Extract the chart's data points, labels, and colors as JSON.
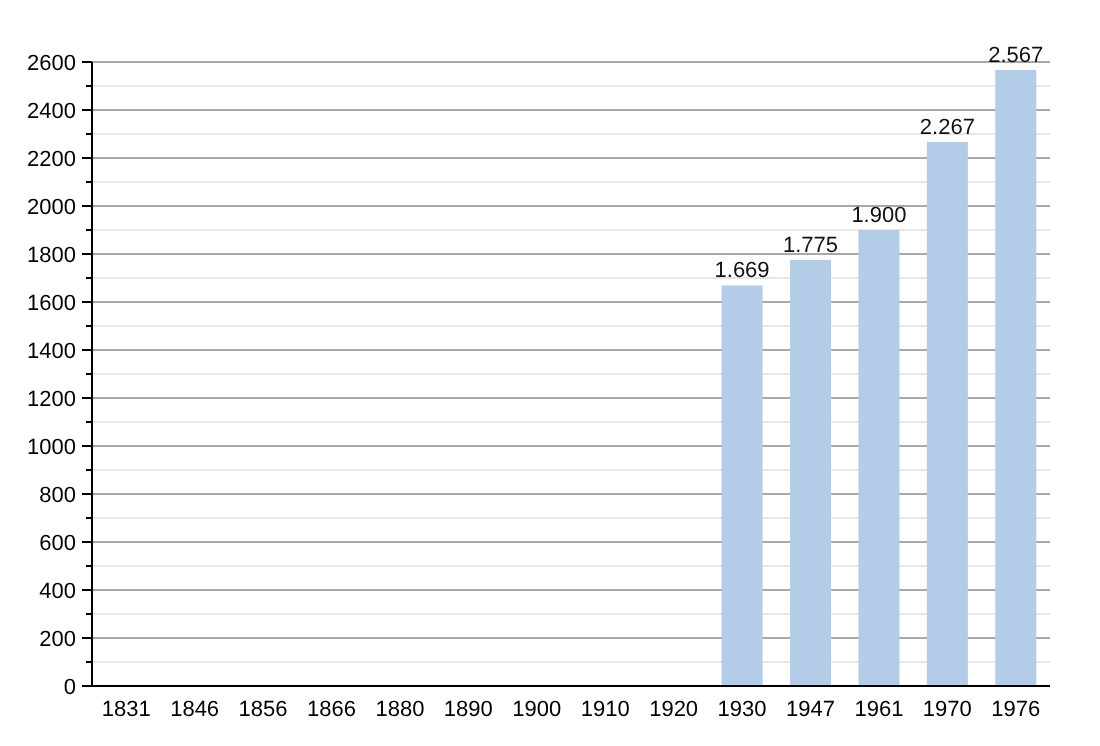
{
  "chart_data": {
    "type": "bar",
    "categories": [
      "1831",
      "1846",
      "1856",
      "1866",
      "1880",
      "1890",
      "1900",
      "1910",
      "1920",
      "1930",
      "1947",
      "1961",
      "1970",
      "1976"
    ],
    "values": [
      null,
      null,
      null,
      null,
      null,
      null,
      null,
      null,
      null,
      1669,
      1775,
      1900,
      2267,
      2567
    ],
    "value_labels": [
      null,
      null,
      null,
      null,
      null,
      null,
      null,
      null,
      null,
      "1.669",
      "1.775",
      "1.900",
      "2.267",
      "2.567"
    ],
    "color": "#b3cde8",
    "ylim": [
      0,
      2600
    ],
    "yticks": [
      0,
      {
        "value": 100,
        "label": null
      },
      200,
      {
        "value": 300,
        "label": null
      },
      400,
      {
        "value": 500,
        "label": null
      },
      600,
      {
        "value": 700,
        "label": null
      },
      800,
      {
        "value": 900,
        "label": null
      },
      1000,
      {
        "value": 1100,
        "label": null
      },
      1200,
      {
        "value": 1300,
        "label": null
      },
      1400,
      {
        "value": 1500,
        "label": null
      },
      1600,
      {
        "value": 1700,
        "label": null
      },
      1800,
      {
        "value": 1900,
        "label": null
      },
      2000,
      {
        "value": 2100,
        "label": null
      },
      2200,
      {
        "value": 2300,
        "label": null
      },
      2400,
      {
        "value": 2500,
        "label": null
      },
      2600
    ],
    "grid": true
  }
}
